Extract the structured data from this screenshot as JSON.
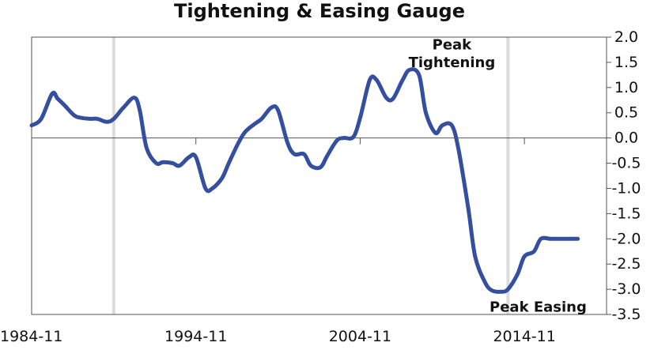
{
  "chart_data": {
    "type": "line",
    "title": "Tightening & Easing Gauge",
    "xlabel": "",
    "ylabel": "",
    "x_range": [
      "1984-11",
      "2019-11"
    ],
    "ylim": [
      -3.5,
      2.0
    ],
    "y_ticks": [
      "2.0",
      "1.5",
      "1.0",
      "0.5",
      "0.0",
      "-0.5",
      "-1.0",
      "-1.5",
      "-2.0",
      "-2.5",
      "-3.0",
      "-3.5"
    ],
    "x_tick_labels": [
      "1984-11",
      "1994-11",
      "2004-11",
      "2014-11"
    ],
    "y_axis_position": "right",
    "grid": false,
    "legend": "none",
    "shaded_markers": [
      "1989-11",
      "2013-11"
    ],
    "annotations": [
      {
        "text": "Peak",
        "x": "2010-06",
        "y": 1.85
      },
      {
        "text": "Tightening",
        "x": "2010-06",
        "y": 1.5
      },
      {
        "text": "Peak Easing",
        "x": "2015-09",
        "y": -3.35
      }
    ],
    "colors": {
      "line": "#344ea0",
      "marker": "#dcdcdc",
      "axis": "#555555"
    },
    "series": [
      {
        "x": [
          "1984-11",
          "1985-06",
          "1986-02",
          "1986-06",
          "1986-11",
          "1987-06",
          "1987-11",
          "1988-06",
          "1988-11",
          "1989-06",
          "1989-11",
          "1990-06",
          "1991-02",
          "1991-06",
          "1991-11",
          "1992-06",
          "1992-11",
          "1993-06",
          "1993-11",
          "1994-06",
          "1994-11",
          "1995-06",
          "1995-11",
          "1996-06",
          "1996-11",
          "1997-06",
          "1997-11",
          "1998-06",
          "1998-11",
          "1999-06",
          "1999-11",
          "2000-06",
          "2000-11",
          "2001-06",
          "2001-11",
          "2002-06",
          "2002-11",
          "2003-06",
          "2003-11",
          "2004-06",
          "2004-11",
          "2005-06",
          "2005-11",
          "2006-06",
          "2006-11",
          "2007-06",
          "2007-11",
          "2008-06",
          "2008-11",
          "2009-06",
          "2009-11",
          "2010-06",
          "2010-11",
          "2011-06",
          "2011-11",
          "2012-06",
          "2012-11",
          "2013-06",
          "2013-11",
          "2014-06",
          "2014-11",
          "2015-06",
          "2015-11",
          "2016-06",
          "2016-11",
          "2017-06",
          "2017-11",
          "2018-02"
        ],
        "values": [
          0.25,
          0.38,
          0.88,
          0.78,
          0.65,
          0.45,
          0.4,
          0.38,
          0.38,
          0.32,
          0.38,
          0.6,
          0.8,
          0.55,
          -0.2,
          -0.5,
          -0.48,
          -0.5,
          -0.55,
          -0.38,
          -0.38,
          -1.0,
          -1.0,
          -0.8,
          -0.5,
          -0.1,
          0.12,
          0.28,
          0.38,
          0.6,
          0.55,
          -0.1,
          -0.32,
          -0.32,
          -0.55,
          -0.58,
          -0.35,
          -0.05,
          0.0,
          0.02,
          0.4,
          1.15,
          1.15,
          0.8,
          0.78,
          1.15,
          1.35,
          1.25,
          0.5,
          0.1,
          0.25,
          0.25,
          -0.25,
          -1.4,
          -2.35,
          -2.85,
          -3.02,
          -3.05,
          -3.0,
          -2.7,
          -2.35,
          -2.25,
          -2.0,
          -2.0,
          -2.0,
          -2.0,
          -2.0,
          -2.0
        ]
      }
    ]
  }
}
